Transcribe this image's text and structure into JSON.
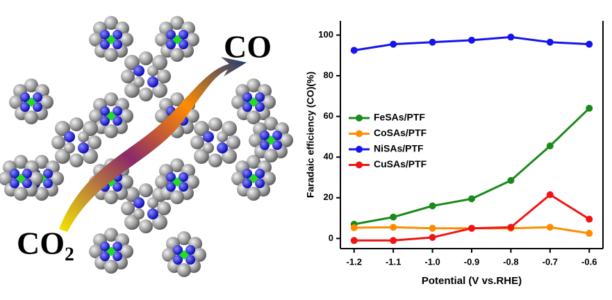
{
  "chart_data": {
    "type": "line",
    "annotations": [
      "CO",
      "CO₂"
    ],
    "x_label": "Potential (V vs.RHE)",
    "y_label": "Faradaic efficiency (CO)(%)",
    "x": [
      -1.2,
      -1.1,
      -1.0,
      -0.9,
      -0.8,
      -0.7,
      -0.6
    ],
    "series": [
      {
        "name": "FeSAs/PTF",
        "color": "#1a8a1a",
        "values": [
          7,
          10.5,
          16,
          19.5,
          28.5,
          45.5,
          64
        ]
      },
      {
        "name": "CoSAs/PTF",
        "color": "#ff8c00",
        "values": [
          5.3,
          5.5,
          5,
          5,
          5,
          5.5,
          2.5
        ]
      },
      {
        "name": "NiSAs/PTF",
        "color": "#1414f0",
        "values": [
          92.5,
          95.5,
          96.5,
          97.5,
          99,
          96.5,
          95.5
        ]
      },
      {
        "name": "CuSAs/PTF",
        "color": "#f01414",
        "values": [
          -1,
          -1,
          0.5,
          5,
          5.5,
          21.5,
          9.5
        ]
      }
    ],
    "xlim": [
      -1.235,
      -0.565
    ],
    "ylim": [
      -5,
      107
    ],
    "xticks": [
      -1.2,
      -1.1,
      {
        "value": -1.0,
        "label": "-1.0"
      },
      -0.9,
      -0.8,
      -0.7,
      -0.6
    ],
    "yticks": [
      0,
      20,
      40,
      60,
      80,
      100
    ],
    "legend": "center left"
  }
}
